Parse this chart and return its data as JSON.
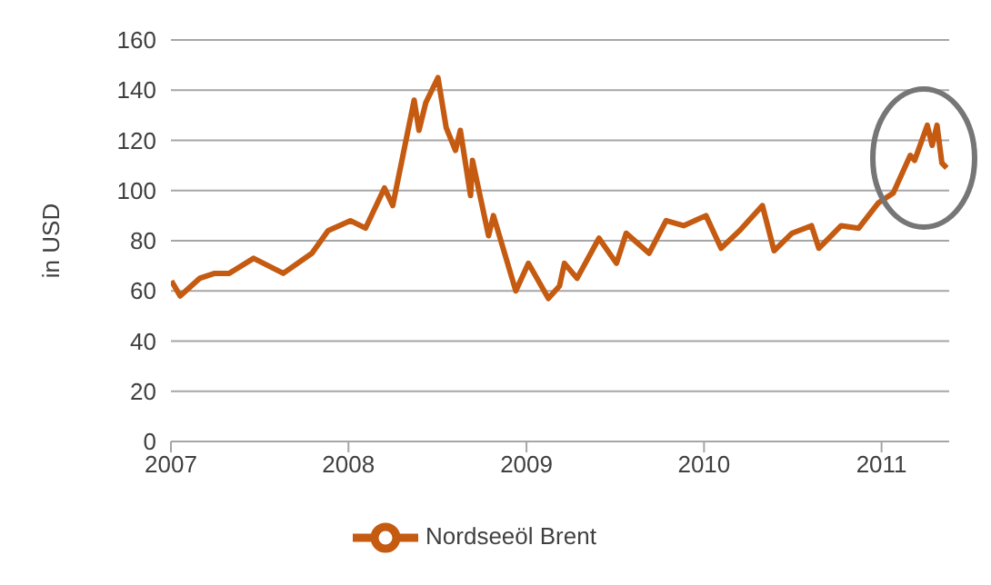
{
  "chart_data": {
    "type": "line",
    "ylabel": "in USD",
    "x": [
      "2007-01-02",
      "2007-01-20",
      "2007-03-01",
      "2007-04-01",
      "2007-05-01",
      "2007-06-20",
      "2007-08-20",
      "2007-10-18",
      "2007-11-20",
      "2008-01-05",
      "2008-02-05",
      "2008-03-15",
      "2008-04-01",
      "2008-05-15",
      "2008-05-25",
      "2008-06-08",
      "2008-07-03",
      "2008-07-20",
      "2008-08-08",
      "2008-08-18",
      "2008-09-08",
      "2008-09-12",
      "2008-10-15",
      "2008-10-25",
      "2008-12-10",
      "2009-01-05",
      "2009-02-15",
      "2009-03-10",
      "2009-03-20",
      "2009-04-15",
      "2009-05-30",
      "2009-07-05",
      "2009-07-25",
      "2009-09-10",
      "2009-10-15",
      "2009-11-20",
      "2010-01-05",
      "2010-02-05",
      "2010-03-15",
      "2010-05-01",
      "2010-05-25",
      "2010-07-01",
      "2010-08-10",
      "2010-08-25",
      "2010-10-10",
      "2010-11-15",
      "2010-12-25",
      "2011-01-25",
      "2011-03-01",
      "2011-03-10",
      "2011-04-05",
      "2011-04-15",
      "2011-04-25",
      "2011-05-05",
      "2011-05-15"
    ],
    "series": [
      {
        "name": "Nordseeöl Brent",
        "color": "#c55a11",
        "values": [
          64,
          58,
          65,
          67,
          67,
          73,
          67,
          75,
          84,
          88,
          85,
          101,
          94,
          136,
          124,
          135,
          145,
          125,
          116,
          124,
          98,
          112,
          82,
          90,
          60,
          71,
          57,
          62,
          71,
          65,
          81,
          71,
          83,
          75,
          88,
          86,
          90,
          77,
          84,
          94,
          76,
          83,
          86,
          77,
          86,
          85,
          95,
          99,
          114,
          112,
          126,
          118,
          126,
          111,
          109
        ]
      }
    ],
    "xlim": [
      "2007-01-01",
      "2011-05-20"
    ],
    "xticks": [
      "2007",
      "2008",
      "2009",
      "2010",
      "2011"
    ],
    "ylim": [
      0,
      160
    ],
    "yticks": [
      0,
      20,
      40,
      60,
      80,
      100,
      120,
      140,
      160
    ],
    "grid": "y",
    "legend": "bottom",
    "marker": "none",
    "line_style": "solid"
  }
}
